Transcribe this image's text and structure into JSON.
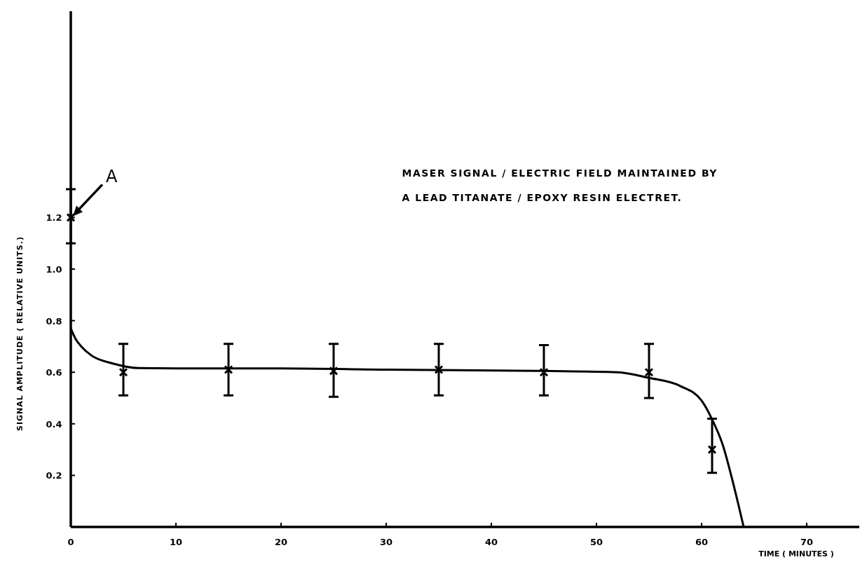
{
  "chart_data": {
    "type": "scatter",
    "xlabel": "TIME ( MINUTES )",
    "ylabel": "SIGNAL AMPLITUDE ( RELATIVE UNITS.)",
    "annotations": [
      "MASER SIGNAL / ELECTRIC FIELD MAINTAINED BY",
      "A LEAD TITANATE / EPOXY RESIN ELECTRET.",
      {
        "text": "A",
        "x": 0,
        "y": 1.2
      }
    ],
    "xlim": [
      0,
      75
    ],
    "xticks": [
      0,
      10,
      20,
      30,
      40,
      50,
      60,
      70
    ],
    "ylim": [
      0,
      2
    ],
    "yticks": [
      0.2,
      0.4,
      0.6,
      0.8,
      {
        "value": 1,
        "label": "1.0"
      },
      1.2
    ],
    "grid": false,
    "series": [
      {
        "color": "#000000",
        "marker": "cross",
        "x": [
          0,
          5,
          15,
          25,
          35,
          45,
          55,
          61
        ],
        "values": [
          1.2,
          0.6,
          0.61,
          0.605,
          0.61,
          0.6,
          0.6,
          0.3
        ],
        "errors": [
          [
            1.1,
            1.31
          ],
          [
            0.51,
            0.71
          ],
          [
            0.51,
            0.71
          ],
          [
            0.505,
            0.71
          ],
          [
            0.51,
            0.71
          ],
          [
            0.51,
            0.705
          ],
          [
            0.5,
            0.71
          ],
          [
            0.21,
            0.42
          ]
        ]
      },
      {
        "type": "line",
        "color": "#000000",
        "marker": "none",
        "line_style": "solid",
        "x": [
          0,
          0.5,
          1,
          2,
          4,
          6.5,
          10,
          20,
          30,
          45,
          52,
          55,
          58,
          60,
          61,
          62,
          63,
          64
        ],
        "values": [
          0.77,
          0.726,
          0.7,
          0.664,
          0.634,
          0.616,
          0.615,
          0.615,
          0.61,
          0.605,
          0.6,
          0.578,
          0.546,
          0.49,
          0.417,
          0.32,
          0.17,
          0
        ]
      }
    ]
  }
}
